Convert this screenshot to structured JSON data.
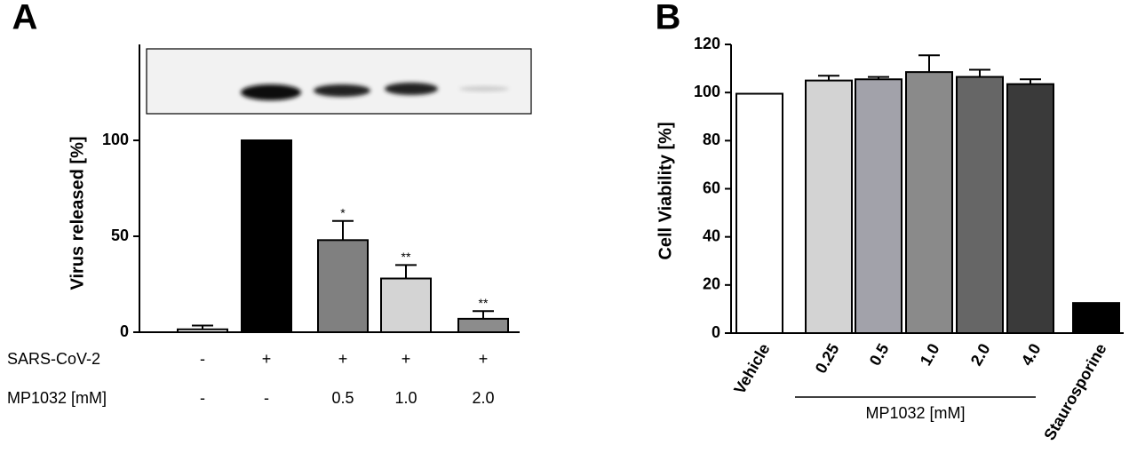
{
  "chart_data": [
    {
      "type": "bar",
      "panel": "A",
      "ylabel": "Virus released [%]",
      "ylim": [
        0,
        150
      ],
      "yticks": [
        0,
        50,
        100
      ],
      "values": [
        1.5,
        100,
        48,
        28,
        7
      ],
      "errors": [
        2,
        null,
        10,
        7,
        4
      ],
      "significance": [
        null,
        null,
        "*",
        "**",
        "**"
      ],
      "colors": [
        "#ffffff",
        "#000000",
        "#808080",
        "#d4d4d4",
        "#8c8c8c"
      ],
      "conditions": [
        {
          "label": "SARS-CoV-2",
          "values": [
            "-",
            "+",
            "+",
            "+",
            "+"
          ]
        },
        {
          "label": "MP1032 [mM]",
          "values": [
            "-",
            "-",
            "0.5",
            "1.0",
            "2.0"
          ]
        }
      ]
    },
    {
      "type": "bar",
      "panel": "B",
      "ylabel": "Cell Viability [%]",
      "ylim": [
        0,
        120
      ],
      "yticks": [
        0,
        20,
        40,
        60,
        80,
        100,
        120
      ],
      "categories": [
        "Vehicle",
        "0.25",
        "0.5",
        "1.0",
        "2.0",
        "4.0",
        "Staurosporine"
      ],
      "values": [
        99.5,
        105,
        105.5,
        108.5,
        106.5,
        103.5,
        12.5
      ],
      "errors": [
        null,
        2,
        1,
        7,
        3,
        2,
        null
      ],
      "colors": [
        "#ffffff",
        "#d3d3d3",
        "#a2a2aa",
        "#8a8a8a",
        "#666666",
        "#3a3a3a",
        "#000000"
      ],
      "group_label": "MP1032 [mM]"
    }
  ]
}
